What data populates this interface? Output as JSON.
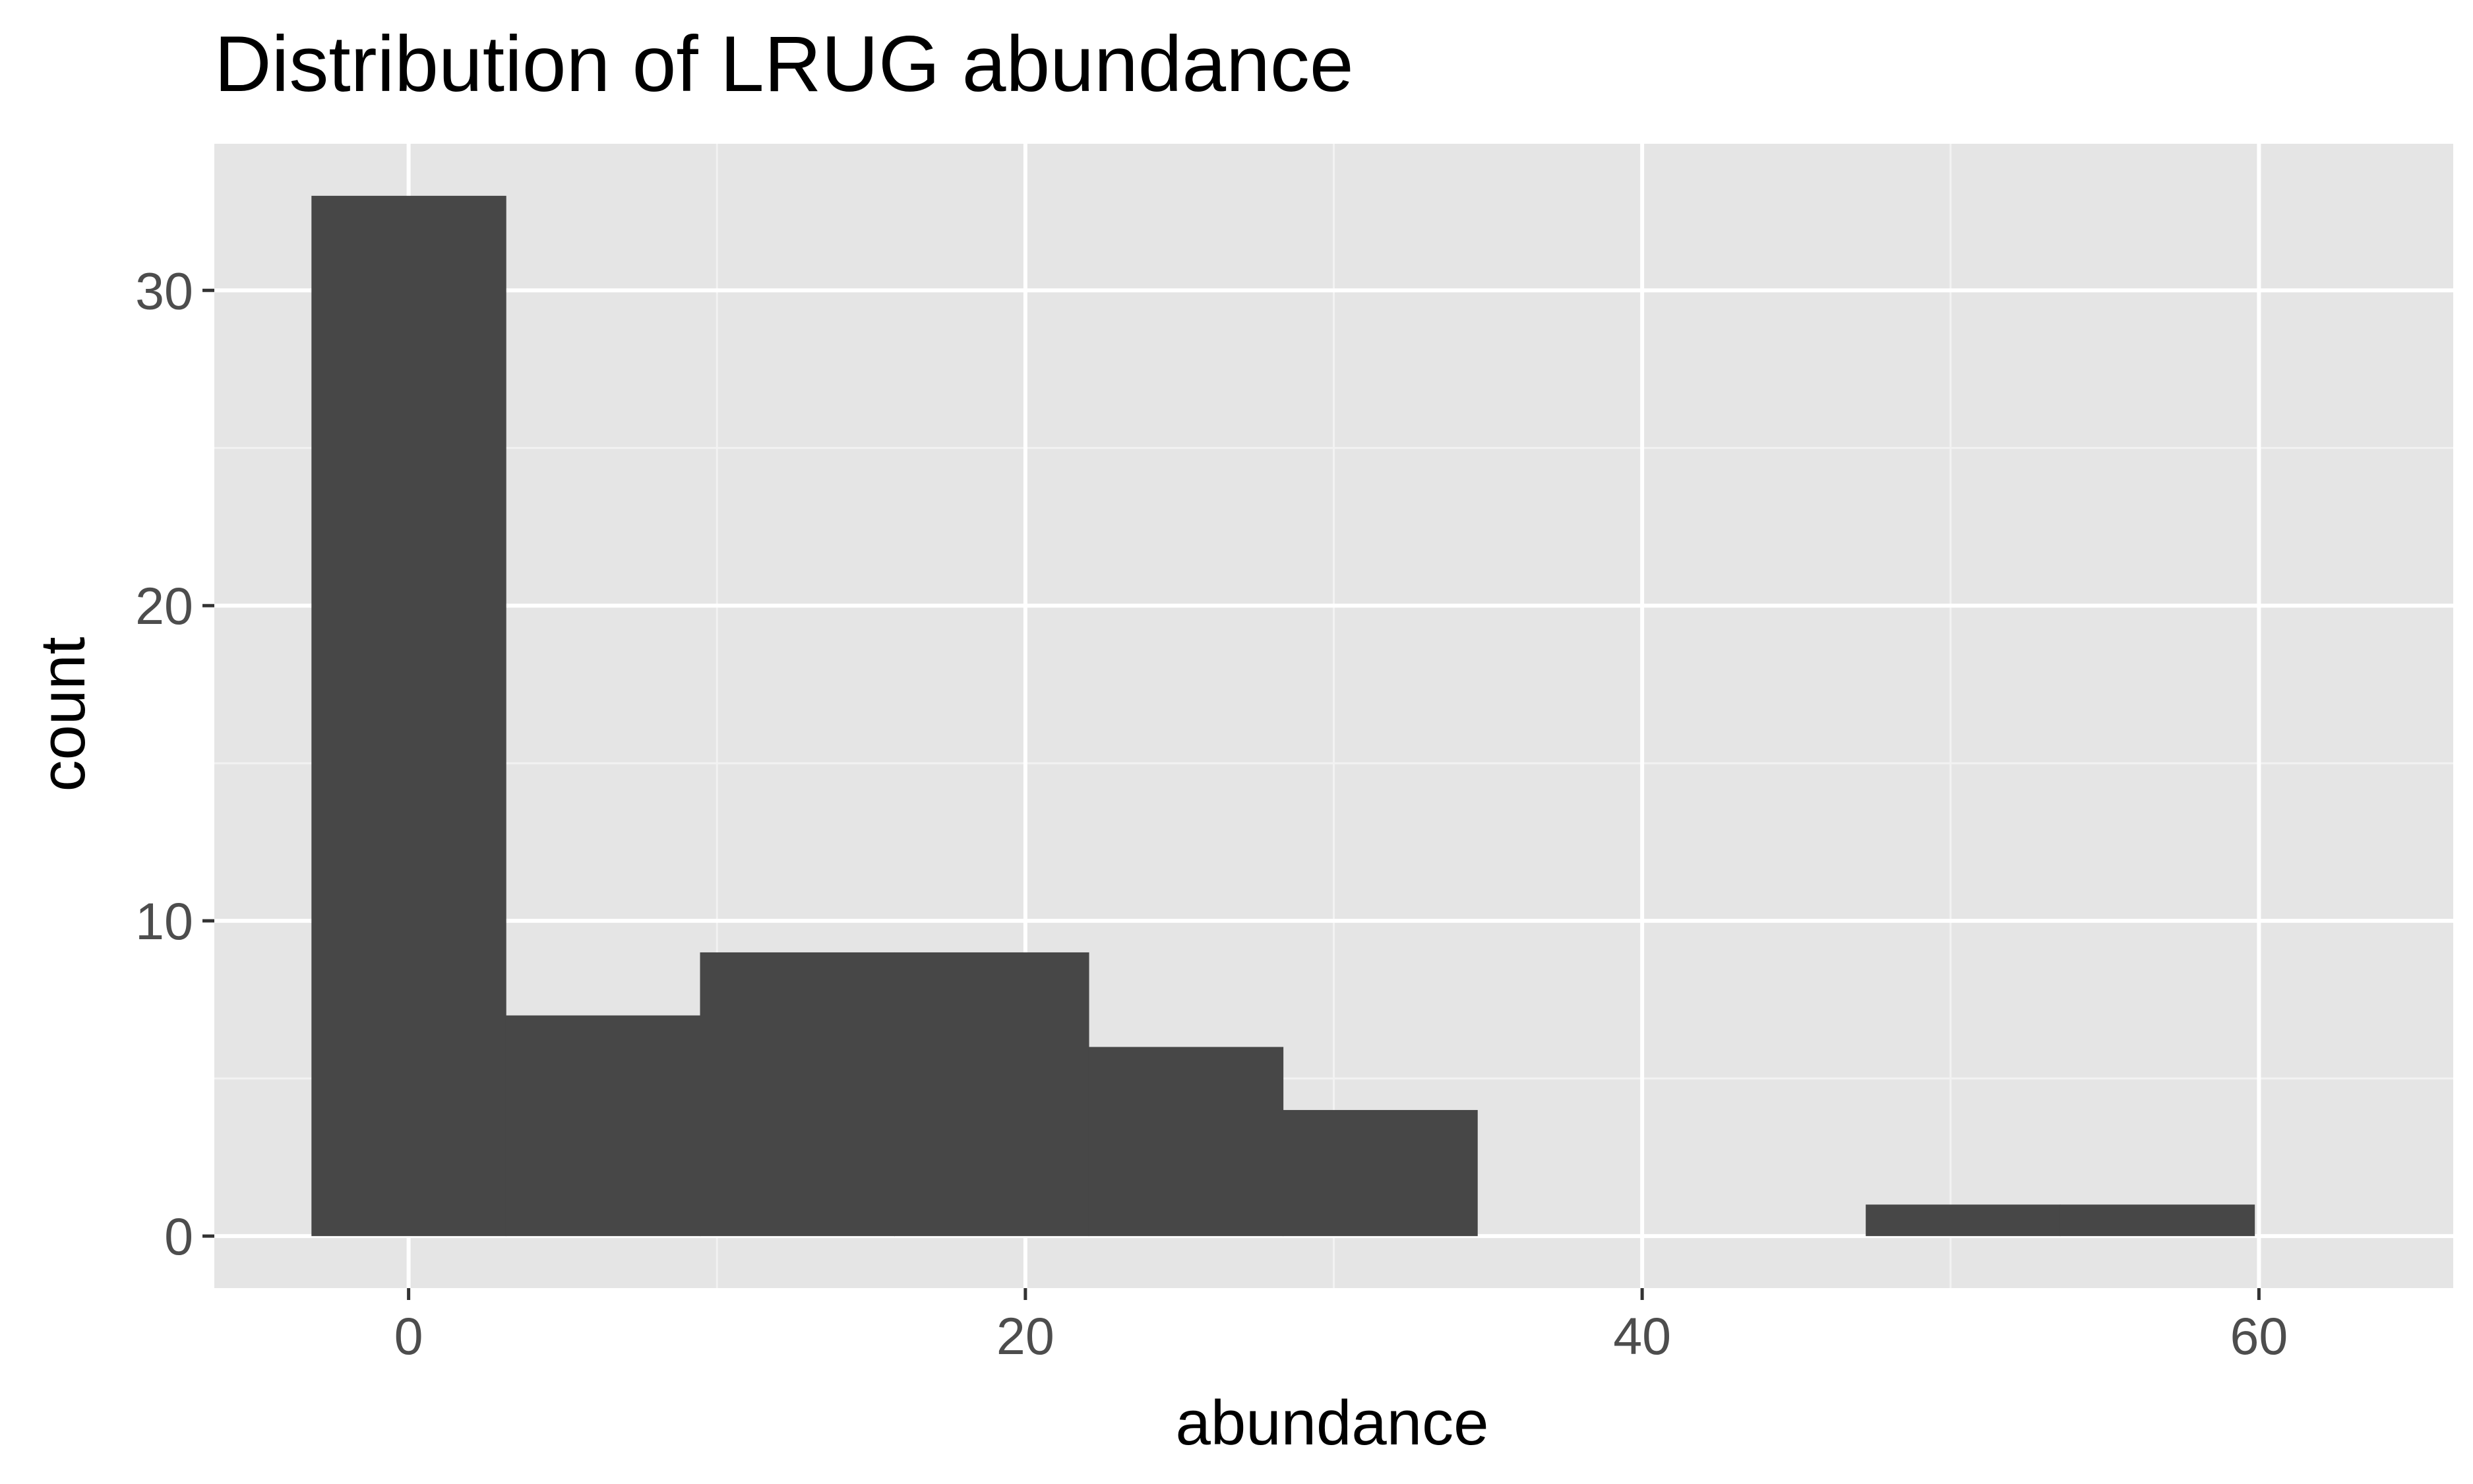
{
  "chart_data": {
    "type": "bar",
    "subtype": "histogram",
    "title": "Distribution of LRUG abundance",
    "xlabel": "abundance",
    "ylabel": "count",
    "xlim": [
      -6.3,
      66.3
    ],
    "ylim": [
      -1.65,
      34.65
    ],
    "x_major_ticks": [
      0,
      20,
      40,
      60
    ],
    "x_minor_ticks": [
      10,
      30,
      50
    ],
    "y_major_ticks": [
      0,
      10,
      20,
      30
    ],
    "y_minor_ticks": [
      5,
      15,
      25
    ],
    "x_tick_labels": [
      "0",
      "20",
      "40",
      "60"
    ],
    "y_tick_labels": [
      "0",
      "10",
      "20",
      "30"
    ],
    "bins": [
      {
        "x0": -3.15,
        "x1": 3.15,
        "count": 33
      },
      {
        "x0": 3.15,
        "x1": 9.45,
        "count": 7
      },
      {
        "x0": 9.45,
        "x1": 15.75,
        "count": 9
      },
      {
        "x0": 15.75,
        "x1": 22.05,
        "count": 9
      },
      {
        "x0": 22.05,
        "x1": 28.35,
        "count": 6
      },
      {
        "x0": 28.35,
        "x1": 34.65,
        "count": 4
      },
      {
        "x0": 34.65,
        "x1": 40.95,
        "count": 0
      },
      {
        "x0": 40.95,
        "x1": 47.25,
        "count": 0
      },
      {
        "x0": 47.25,
        "x1": 53.55,
        "count": 1
      },
      {
        "x0": 53.55,
        "x1": 59.85,
        "count": 1
      }
    ],
    "grid": true,
    "colors": {
      "panel_background": "#e5e5e5",
      "grid_major": "#ffffff",
      "grid_minor": "#f2f2f2",
      "bar_fill": "#474747",
      "tick_text": "#4d4d4d",
      "axis_ticks": "#333333",
      "title_text": "#000000"
    }
  }
}
